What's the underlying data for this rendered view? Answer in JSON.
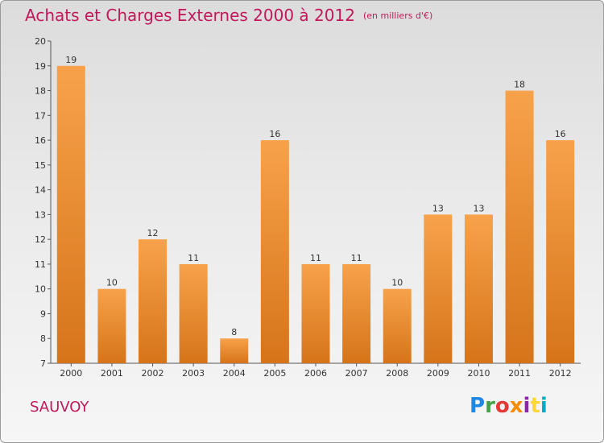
{
  "header": {
    "title": "Achats et Charges Externes 2000 à 2012",
    "unit": "(en milliers d'€)"
  },
  "footer": {
    "place": "SAUVOY",
    "logo": "Proxiti",
    "logo_colors": [
      "#1e88e5",
      "#43a047",
      "#e53935",
      "#fb8c00",
      "#8e24aa",
      "#fdd835",
      "#00acc1"
    ]
  },
  "colors": {
    "bar_top": "#f7a24a",
    "bar_bottom": "#d6741a",
    "title": "#c2185b"
  },
  "chart_data": {
    "type": "bar",
    "title": "Achats et Charges Externes 2000 à 2012",
    "subtitle": "(en milliers d'€)",
    "xlabel": "",
    "ylabel": "",
    "categories": [
      "2000",
      "2001",
      "2002",
      "2003",
      "2004",
      "2005",
      "2006",
      "2007",
      "2008",
      "2009",
      "2010",
      "2011",
      "2012"
    ],
    "values": [
      19,
      10,
      12,
      11,
      8,
      16,
      11,
      11,
      10,
      13,
      13,
      18,
      16
    ],
    "ylim": [
      7,
      20
    ],
    "yticks": [
      7,
      8,
      9,
      10,
      11,
      12,
      13,
      14,
      15,
      16,
      17,
      18,
      19,
      20
    ],
    "grid": false,
    "data_labels": true
  }
}
